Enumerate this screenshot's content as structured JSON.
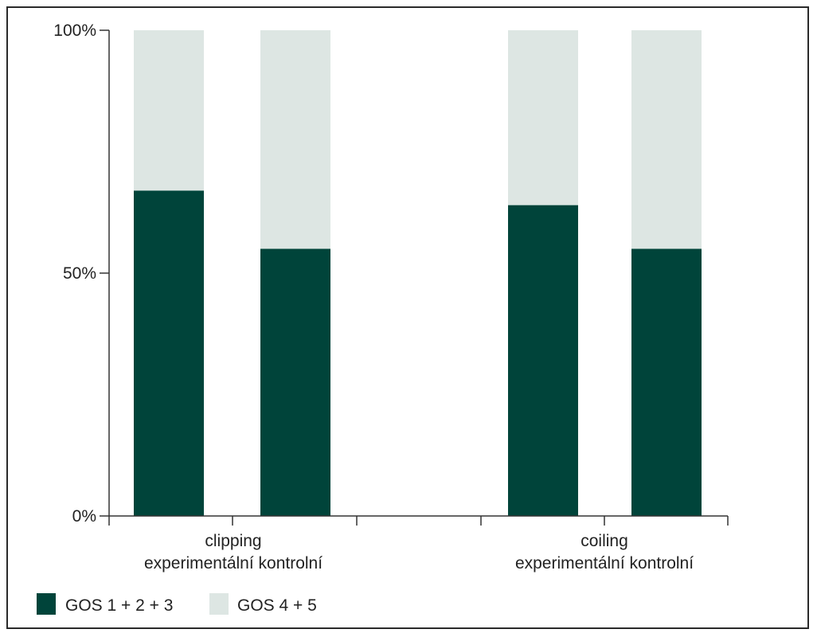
{
  "chart_data": {
    "type": "bar",
    "stacked": true,
    "percent_stacked": true,
    "groups": [
      {
        "label": "clipping",
        "sublabel": "experimentální kontrolní"
      },
      {
        "label": "coiling",
        "sublabel": "experimentální kontrolní"
      }
    ],
    "categories": [
      "clipping experimentální",
      "clipping kontrolní",
      "coiling experimentální",
      "coiling kontrolní"
    ],
    "series": [
      {
        "name": "GOS 1 + 2 + 3",
        "color": "#00443a",
        "values": [
          67,
          55,
          64,
          55
        ]
      },
      {
        "name": "GOS 4 + 5",
        "color": "#dde6e3",
        "values": [
          33,
          45,
          36,
          45
        ]
      }
    ],
    "y_ticks": [
      "0%",
      "50%",
      "100%"
    ],
    "ylim": [
      0,
      100
    ],
    "grid": false,
    "legend_position": "bottom-left"
  }
}
